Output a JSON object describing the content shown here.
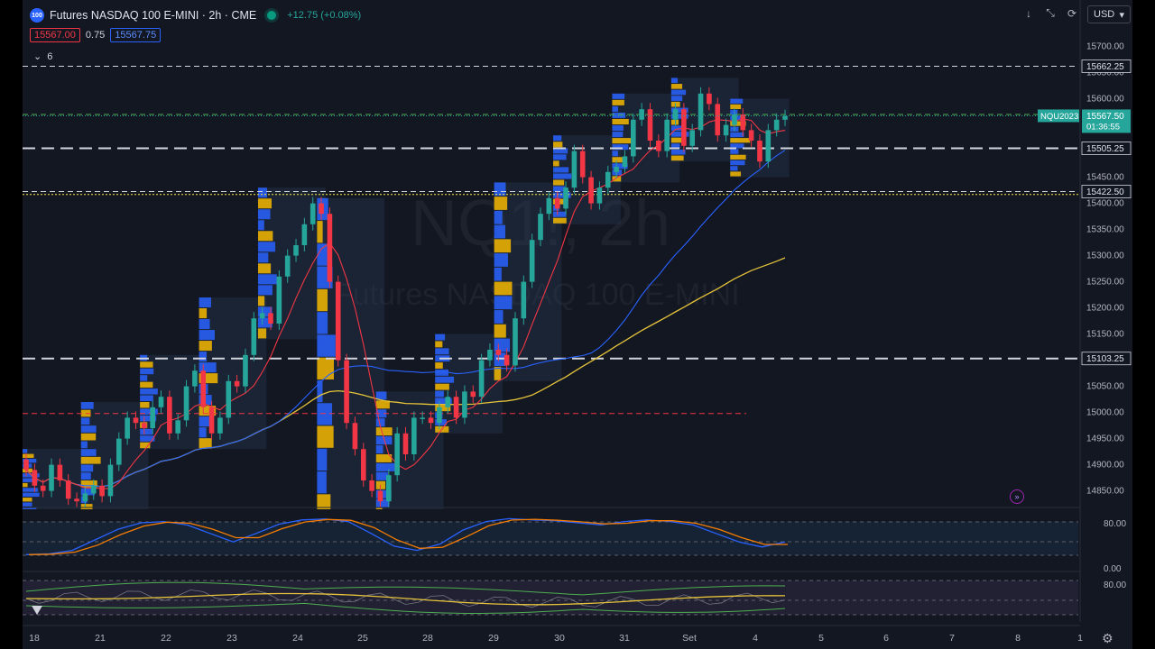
{
  "header": {
    "logo_text": "100",
    "symbol": "Futures NASDAQ 100 E-MINI · 2h · CME",
    "change": "+12.75 (+0.08%)",
    "sell_price": "15567.00",
    "spread": "0.75",
    "buy_price": "15567.75",
    "indicator_count": "6"
  },
  "toolbar": {
    "download_icon": "arrow-down-icon",
    "fullscreen_icon": "expand-icon",
    "snapshot_icon": "screenshot-icon",
    "currency": "USD"
  },
  "watermark": {
    "ticker": "NQ1!, 2h",
    "name": "Futures NASDAQ 100 E-MINI"
  },
  "price_axis": {
    "ticks": [
      "15700.00",
      "15650.00",
      "15600.00",
      "15450.00",
      "15400.00",
      "15350.00",
      "15300.00",
      "15250.00",
      "15200.00",
      "15150.00",
      "15050.00",
      "15000.00",
      "14950.00",
      "14900.00",
      "14850.00"
    ],
    "labels": [
      {
        "text": "15662.25",
        "value": 15662.25,
        "type": "level"
      },
      {
        "text": "15505.25",
        "value": 15505.25,
        "type": "level"
      },
      {
        "text": "15422.50",
        "value": 15422.5,
        "type": "level"
      },
      {
        "text": "15103.25",
        "value": 15103.25,
        "type": "level"
      }
    ],
    "current": {
      "symbol": "NQU2023",
      "price": "15567.50",
      "countdown": "01:36:55",
      "value": 15567.5
    }
  },
  "time_axis": {
    "labels": [
      "18",
      "21",
      "22",
      "23",
      "24",
      "25",
      "28",
      "29",
      "30",
      "31",
      "Set",
      "4",
      "5",
      "6",
      "7",
      "8",
      "1"
    ]
  },
  "levels": [
    {
      "value": 15662.25,
      "color": "#d1d4dc",
      "style": "dashed",
      "thin": true
    },
    {
      "value": 15505.25,
      "color": "#d1d4dc",
      "style": "dashed"
    },
    {
      "value": 15422.5,
      "color": "#d1d4dc",
      "style": "dashed",
      "thin": true
    },
    {
      "value": 15103.25,
      "color": "#d1d4dc",
      "style": "dashed"
    },
    {
      "value": 15570,
      "color": "#4caf50",
      "style": "dashed",
      "thin": true
    },
    {
      "value": 15417,
      "color": "#ffeb3b",
      "style": "dotted",
      "thin": true
    },
    {
      "value": 14998,
      "color": "#f23645",
      "style": "dashed",
      "thin": true,
      "end": 0.6
    }
  ],
  "colors": {
    "up": "#26a69a",
    "down": "#f23645",
    "sma_slow": "#e5c33a",
    "sma_mid": "#2962ff",
    "ema_fast": "#f23645",
    "profile_blue": "#2962ff",
    "profile_yellow": "#f5b800",
    "stoch_k": "#2962ff",
    "stoch_d": "#f57c00"
  },
  "chart_data": {
    "type": "candlestick",
    "ylim": [
      14820,
      15720
    ],
    "closes": [
      14890,
      14860,
      14850,
      14900,
      14870,
      14835,
      14830,
      14845,
      14860,
      14840,
      14900,
      14950,
      14990,
      14980,
      14970,
      15010,
      15030,
      14960,
      14985,
      15050,
      15080,
      15010,
      14960,
      14990,
      15060,
      15050,
      15110,
      15180,
      15190,
      15170,
      15260,
      15300,
      15320,
      15360,
      15400,
      15380,
      15250,
      15100,
      14980,
      14930,
      14870,
      14850,
      14830,
      14880,
      14960,
      14920,
      14990,
      14990,
      14980,
      15010,
      15030,
      14990,
      15040,
      15030,
      15100,
      15120,
      15110,
      15090,
      15180,
      15250,
      15330,
      15380,
      15410,
      15390,
      15430,
      15500,
      15450,
      15400,
      15430,
      15460,
      15470,
      15490,
      15560,
      15580,
      15520,
      15500,
      15560,
      15580,
      15510,
      15540,
      15610,
      15590,
      15530,
      15550,
      15570,
      15540,
      15520,
      15480,
      15540,
      15560,
      15567
    ],
    "stochastic": {
      "ticks": [
        "80.00",
        "0.00"
      ],
      "k": [
        10,
        12,
        20,
        45,
        70,
        85,
        88,
        80,
        60,
        40,
        60,
        82,
        92,
        94,
        88,
        60,
        30,
        20,
        35,
        68,
        88,
        95,
        92,
        90,
        85,
        80,
        88,
        92,
        88,
        80,
        60,
        40,
        28,
        40
      ]
    },
    "oscillator": {
      "ticks": [
        "80.00"
      ]
    }
  }
}
